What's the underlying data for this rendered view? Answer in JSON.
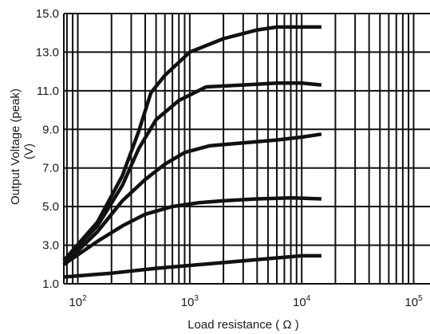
{
  "chart_data": {
    "type": "line",
    "title": "",
    "xlabel": "Load resistance ( Ω )",
    "ylabel_line1": "Output Voltage (peak)",
    "ylabel_line2": "(V)",
    "x_scale": "log",
    "xlim": [
      75,
      140000
    ],
    "ylim": [
      1.0,
      15.0
    ],
    "grid": true,
    "x_ticks": [
      {
        "base": "10",
        "exp": "2",
        "value": 100
      },
      {
        "base": "10",
        "exp": "3",
        "value": 1000
      },
      {
        "base": "10",
        "exp": "4",
        "value": 10000
      },
      {
        "base": "10",
        "exp": "5",
        "value": 100000
      }
    ],
    "y_ticks": [
      "1.0",
      "3.0",
      "5.0",
      "7.0",
      "9.0",
      "11.0",
      "13.0",
      "15.0"
    ],
    "series": [
      {
        "x": [
          75,
          150,
          250,
          350,
          450,
          600,
          1000,
          2000,
          4000,
          6000,
          15000
        ],
        "y": [
          2.2,
          4.2,
          6.6,
          8.9,
          10.9,
          11.8,
          13.0,
          13.7,
          14.15,
          14.3,
          14.3
        ]
      },
      {
        "x": [
          75,
          150,
          250,
          350,
          500,
          800,
          1400,
          3000,
          6000,
          10000,
          15000
        ],
        "y": [
          2.2,
          4.0,
          6.1,
          8.0,
          9.5,
          10.5,
          11.2,
          11.3,
          11.4,
          11.4,
          11.3
        ]
      },
      {
        "x": [
          75,
          150,
          250,
          400,
          600,
          900,
          1500,
          3000,
          6000,
          10000,
          15000
        ],
        "y": [
          2.0,
          3.7,
          5.3,
          6.4,
          7.2,
          7.8,
          8.15,
          8.3,
          8.45,
          8.6,
          8.75
        ]
      },
      {
        "x": [
          75,
          150,
          250,
          400,
          700,
          1200,
          2000,
          4000,
          8000,
          15000
        ],
        "y": [
          2.0,
          3.2,
          4.0,
          4.6,
          5.0,
          5.2,
          5.3,
          5.4,
          5.45,
          5.4
        ]
      },
      {
        "x": [
          75,
          200,
          500,
          1000,
          2000,
          5000,
          10000,
          15000
        ],
        "y": [
          1.35,
          1.55,
          1.8,
          1.95,
          2.1,
          2.3,
          2.45,
          2.45
        ]
      }
    ]
  }
}
